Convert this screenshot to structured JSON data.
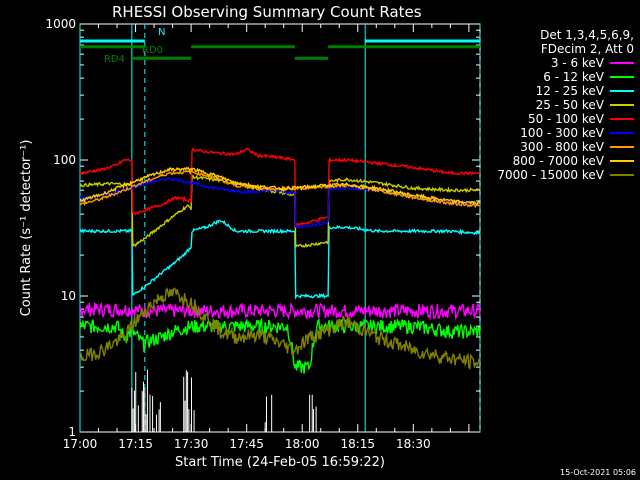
{
  "chart_data": {
    "type": "line",
    "title": "RHESSI Observing Summary Count Rates",
    "xlabel": "Start Time (24-Feb-05 16:59:22)",
    "ylabel": "Count Rate (s⁻¹ detector⁻¹)",
    "yscale": "log",
    "ylim": [
      1,
      1000
    ],
    "xlim_min": [
      0,
      108
    ],
    "y_ticks": [
      "1",
      "10",
      "100",
      "1000"
    ],
    "x_ticks": [
      {
        "t": 0,
        "label": "17:00"
      },
      {
        "t": 15,
        "label": "17:15"
      },
      {
        "t": 30,
        "label": "17:30"
      },
      {
        "t": 45,
        "label": "17:45"
      },
      {
        "t": 60,
        "label": "18:00"
      },
      {
        "t": 75,
        "label": "18:15"
      },
      {
        "t": 90,
        "label": "18:30"
      }
    ],
    "legend_header": [
      "Det 1,3,4,5,6,9,",
      "FDecim 2, Att 0"
    ],
    "series": [
      {
        "name": "3 - 6 keV",
        "color": "#ff00ff",
        "points": [
          [
            0,
            8
          ],
          [
            14,
            8
          ],
          [
            17,
            7.8
          ],
          [
            30,
            7.8
          ],
          [
            45,
            7.8
          ],
          [
            58,
            7.8
          ],
          [
            62,
            7.8
          ],
          [
            75,
            7.8
          ],
          [
            90,
            7.8
          ],
          [
            108,
            7.8
          ]
        ]
      },
      {
        "name": "6 - 12 keV",
        "color": "#00ff00",
        "points": [
          [
            0,
            6
          ],
          [
            10,
            6
          ],
          [
            12,
            5
          ],
          [
            14,
            5.5
          ],
          [
            17,
            4.5
          ],
          [
            22,
            5
          ],
          [
            25,
            5.5
          ],
          [
            30,
            6
          ],
          [
            38,
            6
          ],
          [
            45,
            6
          ],
          [
            56,
            6
          ],
          [
            58,
            3
          ],
          [
            62,
            3
          ],
          [
            64,
            6
          ],
          [
            72,
            6
          ],
          [
            80,
            6
          ],
          [
            90,
            6
          ],
          [
            100,
            5.5
          ],
          [
            108,
            5.5
          ]
        ]
      },
      {
        "name": "12 - 25 keV",
        "color": "#00ffff",
        "points": [
          [
            0,
            30
          ],
          [
            12,
            30
          ],
          [
            14,
            30
          ],
          [
            14.1,
            10
          ],
          [
            16,
            11
          ],
          [
            18,
            12
          ],
          [
            21,
            14
          ],
          [
            25,
            17
          ],
          [
            28,
            20
          ],
          [
            30,
            23
          ],
          [
            30.1,
            30
          ],
          [
            34,
            32
          ],
          [
            38,
            36
          ],
          [
            42,
            30
          ],
          [
            48,
            30
          ],
          [
            54,
            30
          ],
          [
            58,
            30
          ],
          [
            58.1,
            10
          ],
          [
            63,
            10
          ],
          [
            67,
            10
          ],
          [
            67.1,
            32
          ],
          [
            72,
            32
          ],
          [
            80,
            30
          ],
          [
            90,
            30
          ],
          [
            100,
            30
          ],
          [
            108,
            29
          ]
        ]
      },
      {
        "name": "25 - 50 keV",
        "color": "#cccc00",
        "points": [
          [
            0,
            65
          ],
          [
            8,
            67
          ],
          [
            14,
            66
          ],
          [
            14.1,
            23
          ],
          [
            18,
            27
          ],
          [
            22,
            33
          ],
          [
            26,
            40
          ],
          [
            29,
            46
          ],
          [
            30,
            44
          ],
          [
            30.1,
            75
          ],
          [
            36,
            72
          ],
          [
            41,
            68
          ],
          [
            45,
            65
          ],
          [
            50,
            60
          ],
          [
            54,
            58
          ],
          [
            58,
            55
          ],
          [
            58.1,
            23
          ],
          [
            63,
            24
          ],
          [
            67,
            25
          ],
          [
            67.1,
            70
          ],
          [
            72,
            72
          ],
          [
            80,
            68
          ],
          [
            90,
            62
          ],
          [
            100,
            60
          ],
          [
            108,
            60
          ]
        ]
      },
      {
        "name": "50 - 100 keV",
        "color": "#ff0000",
        "points": [
          [
            0,
            80
          ],
          [
            6,
            85
          ],
          [
            10,
            92
          ],
          [
            12,
            100
          ],
          [
            14,
            100
          ],
          [
            14.1,
            40
          ],
          [
            18,
            43
          ],
          [
            22,
            47
          ],
          [
            26,
            53
          ],
          [
            30,
            50
          ],
          [
            30.1,
            120
          ],
          [
            34,
            115
          ],
          [
            38,
            112
          ],
          [
            42,
            110
          ],
          [
            45,
            120
          ],
          [
            48,
            108
          ],
          [
            54,
            104
          ],
          [
            58,
            100
          ],
          [
            58.1,
            33
          ],
          [
            62,
            35
          ],
          [
            67,
            38
          ],
          [
            67.1,
            100
          ],
          [
            72,
            100
          ],
          [
            80,
            95
          ],
          [
            90,
            88
          ],
          [
            100,
            80
          ],
          [
            108,
            80
          ]
        ]
      },
      {
        "name": "100 - 300 keV",
        "color": "#0000ff",
        "points": [
          [
            0,
            52
          ],
          [
            6,
            55
          ],
          [
            12,
            60
          ],
          [
            18,
            68
          ],
          [
            24,
            73
          ],
          [
            28,
            70
          ],
          [
            34,
            64
          ],
          [
            40,
            60
          ],
          [
            46,
            58
          ],
          [
            52,
            60
          ],
          [
            58,
            57
          ],
          [
            58.1,
            32
          ],
          [
            62,
            33
          ],
          [
            67,
            35
          ],
          [
            67.1,
            62
          ],
          [
            72,
            62
          ],
          [
            80,
            60
          ],
          [
            88,
            55
          ],
          [
            96,
            50
          ],
          [
            108,
            48
          ]
        ]
      },
      {
        "name": "300 - 800 keV",
        "color": "#ff9900",
        "points": [
          [
            0,
            47
          ],
          [
            6,
            52
          ],
          [
            12,
            60
          ],
          [
            18,
            70
          ],
          [
            24,
            80
          ],
          [
            30,
            82
          ],
          [
            36,
            75
          ],
          [
            42,
            65
          ],
          [
            48,
            62
          ],
          [
            54,
            60
          ],
          [
            60,
            62
          ],
          [
            66,
            64
          ],
          [
            72,
            65
          ],
          [
            80,
            60
          ],
          [
            90,
            53
          ],
          [
            100,
            48
          ],
          [
            108,
            46
          ]
        ]
      },
      {
        "name": "800 - 7000 keV",
        "color": "#ffcc00",
        "points": [
          [
            0,
            50
          ],
          [
            6,
            56
          ],
          [
            12,
            65
          ],
          [
            18,
            75
          ],
          [
            24,
            85
          ],
          [
            30,
            86
          ],
          [
            36,
            78
          ],
          [
            42,
            68
          ],
          [
            48,
            64
          ],
          [
            54,
            62
          ],
          [
            60,
            63
          ],
          [
            66,
            65
          ],
          [
            72,
            66
          ],
          [
            80,
            62
          ],
          [
            90,
            55
          ],
          [
            100,
            50
          ],
          [
            108,
            48
          ]
        ]
      },
      {
        "name": "7000 - 15000 keV",
        "color": "#808000",
        "points": [
          [
            0,
            3.5
          ],
          [
            6,
            4
          ],
          [
            12,
            5
          ],
          [
            18,
            8
          ],
          [
            22,
            10
          ],
          [
            26,
            10.5
          ],
          [
            30,
            9
          ],
          [
            34,
            7
          ],
          [
            38,
            5.5
          ],
          [
            42,
            5
          ],
          [
            48,
            5.2
          ],
          [
            54,
            4.5
          ],
          [
            58,
            4
          ],
          [
            62,
            5
          ],
          [
            66,
            5.5
          ],
          [
            72,
            6.5
          ],
          [
            80,
            5
          ],
          [
            90,
            4
          ],
          [
            100,
            3.5
          ],
          [
            108,
            3.2
          ]
        ]
      }
    ],
    "spikes": {
      "color": "#ffffff",
      "x_ranges": [
        [
          14,
          22
        ],
        [
          28,
          31
        ],
        [
          50,
          52
        ],
        [
          62,
          66
        ]
      ],
      "note_values": [
        1,
        3
      ]
    },
    "segments": [
      {
        "label": "N",
        "color": "#00ffff",
        "t0": 0,
        "t1": 17.5,
        "level": 750
      },
      {
        "label": "RD0",
        "color": "#008000",
        "t0": 0,
        "t1": 17.5,
        "level": 680
      },
      {
        "label": "RD4",
        "color": "#008000",
        "t0": 14,
        "t1": 30,
        "level": 560
      }
    ],
    "segment_bars": [
      {
        "color": "#008000",
        "t0": 30,
        "t1": 58,
        "level": 680
      },
      {
        "color": "#008000",
        "t0": 58,
        "t1": 67,
        "level": 560
      },
      {
        "color": "#008000",
        "t0": 67,
        "t1": 108,
        "level": 680
      },
      {
        "color": "#00ffff",
        "t0": 77,
        "t1": 108,
        "level": 750
      }
    ],
    "vlines_solid": [
      {
        "t": 0,
        "color": "#00ffff"
      },
      {
        "t": 14,
        "color": "#00ffff"
      },
      {
        "t": 77,
        "color": "#00ffff"
      }
    ],
    "vlines_dashed": [
      {
        "t": 17.5,
        "color": "#00ffff"
      },
      {
        "t": 108,
        "color": "#00ffff"
      }
    ]
  },
  "footer": "15-Oct-2021 05:06"
}
